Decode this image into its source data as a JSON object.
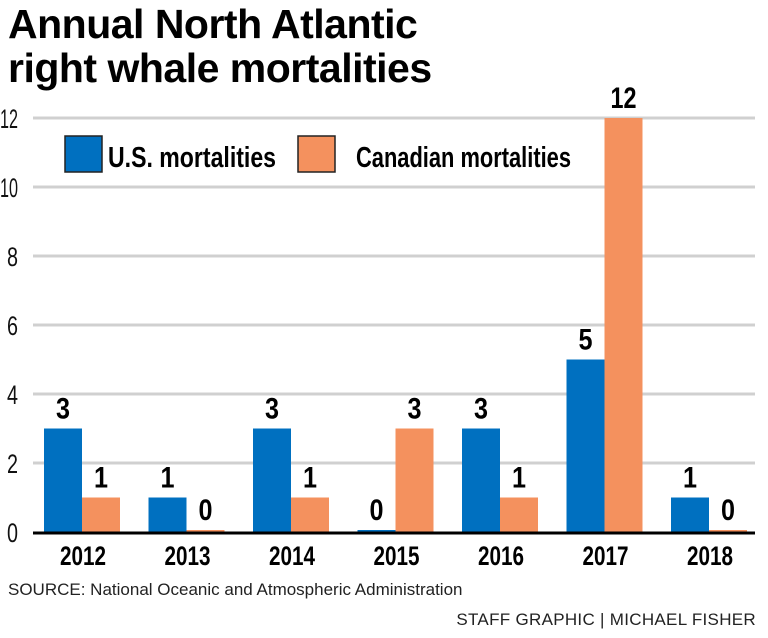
{
  "title_line1": "Annual North Atlantic",
  "title_line2": "right whale mortalities",
  "source": "SOURCE: National Oceanic and Atmospheric Administration",
  "credit": "STAFF GRAPHIC | MICHAEL FISHER",
  "chart_data": {
    "type": "bar",
    "title": "Annual North Atlantic right whale mortalities",
    "xlabel": "",
    "ylabel": "",
    "categories": [
      "2012",
      "2013",
      "2014",
      "2015",
      "2016",
      "2017",
      "2018"
    ],
    "series": [
      {
        "name": "U.S. mortalities",
        "color": "#0070c0",
        "values": [
          3,
          1,
          3,
          0,
          3,
          5,
          1
        ]
      },
      {
        "name": "Canadian mortalities",
        "color": "#f4915e",
        "values": [
          1,
          0,
          1,
          3,
          1,
          12,
          0
        ]
      }
    ],
    "ylim": [
      0,
      12
    ],
    "yticks": [
      0,
      2,
      4,
      6,
      8,
      10,
      12
    ],
    "grid": true,
    "legend": "top-left",
    "data_labels": true
  }
}
